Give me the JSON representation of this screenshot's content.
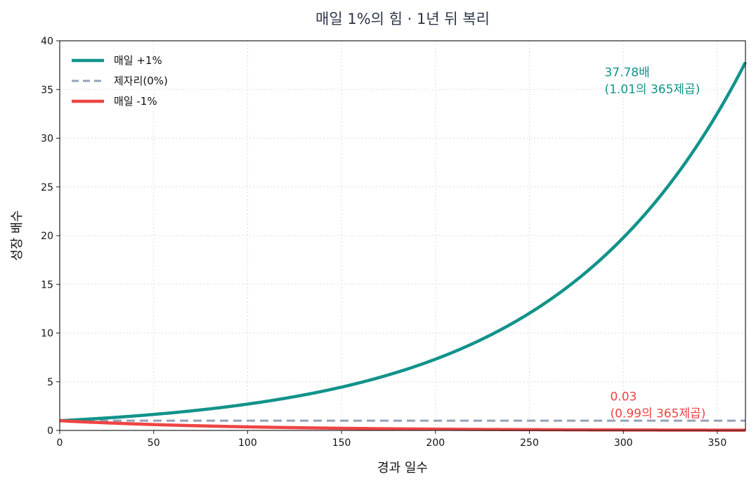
{
  "chart_data": {
    "type": "line",
    "title": "매일 1%의 힘  ·  1년 뒤 복리",
    "xlabel": "경과 일수",
    "ylabel": "성장 배수",
    "xlim": [
      0,
      365
    ],
    "ylim": [
      0,
      40
    ],
    "xticks": [
      0,
      50,
      100,
      150,
      200,
      250,
      300,
      350
    ],
    "yticks": [
      0,
      5,
      10,
      15,
      20,
      25,
      30,
      35,
      40
    ],
    "grid": true,
    "legend_position": "top-left",
    "series": [
      {
        "name": "매일 +1%",
        "color": "#12938a",
        "style": "solid",
        "formula": "1.01^x",
        "x": [
          0,
          50,
          100,
          150,
          200,
          250,
          300,
          350,
          365
        ],
        "y": [
          1.0,
          1.64,
          2.7,
          4.45,
          7.32,
          12.03,
          19.79,
          32.56,
          37.78
        ]
      },
      {
        "name": "제자리(0%)",
        "color": "#94a3b8",
        "style": "dashed",
        "formula": "1",
        "x": [
          0,
          365
        ],
        "y": [
          1,
          1
        ]
      },
      {
        "name": "매일 -1%",
        "color": "#ef4444",
        "style": "solid",
        "formula": "0.99^x",
        "x": [
          0,
          50,
          100,
          150,
          200,
          250,
          300,
          350,
          365
        ],
        "y": [
          1.0,
          0.61,
          0.37,
          0.22,
          0.13,
          0.08,
          0.05,
          0.03,
          0.03
        ]
      }
    ],
    "annotations": [
      {
        "line1": "37.78배",
        "line2": "(1.01의 365제곱)",
        "color": "#12938a",
        "x": 290,
        "y": 37.78
      },
      {
        "line1": "0.03",
        "line2": "(0.99의 365제곱)",
        "color": "#ef4444",
        "x": 293,
        "y": 4.5
      }
    ]
  }
}
